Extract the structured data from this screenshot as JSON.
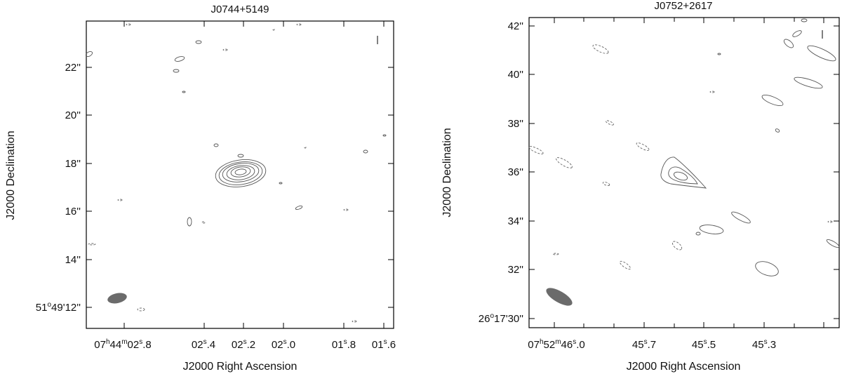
{
  "chart_data": [
    {
      "type": "contour",
      "title": "J0744+5149",
      "xlabel": "J2000 Right Ascension",
      "ylabel": "J2000 Declination",
      "x_ticks": [
        {
          "h": "07",
          "m": "44",
          "s": "02",
          "frac": ".8"
        },
        {
          "s": "02",
          "frac": ".4"
        },
        {
          "s": "02",
          "frac": ".2"
        },
        {
          "s": "02",
          "frac": ".0"
        },
        {
          "s": "01",
          "frac": ".8"
        },
        {
          "s": "01",
          "frac": ".6"
        }
      ],
      "y_ticks": [
        {
          "deg": "51",
          "min": "49",
          "sec": "12''"
        },
        {
          "sec": "14''"
        },
        {
          "sec": "16''"
        },
        {
          "sec": "18''"
        },
        {
          "sec": "20''"
        },
        {
          "sec": "22''"
        }
      ],
      "source_peak": {
        "ra_s": 2.24,
        "dec_arcsec": 17.6
      },
      "beam": "filled-ellipse-bottom-left"
    },
    {
      "type": "contour",
      "title": "J0752+2617",
      "xlabel": "J2000 Right Ascension",
      "ylabel": "J2000 Declination",
      "x_ticks": [
        {
          "h": "07",
          "m": "52",
          "s": "46",
          "frac": ".0"
        },
        {
          "s": "45",
          "frac": ".7"
        },
        {
          "s": "45",
          "frac": ".5"
        },
        {
          "s": "45",
          "frac": ".3"
        }
      ],
      "y_ticks": [
        {
          "deg": "26",
          "min": "17",
          "sec": "30''"
        },
        {
          "sec": "32''"
        },
        {
          "sec": "34''"
        },
        {
          "sec": "36''"
        },
        {
          "sec": "38''"
        },
        {
          "sec": "40''"
        },
        {
          "sec": "42''"
        }
      ],
      "source_peak": {
        "ra_s": 45.61,
        "dec_arcsec": 35.8
      },
      "beam": "filled-ellipse-bottom-left"
    }
  ]
}
